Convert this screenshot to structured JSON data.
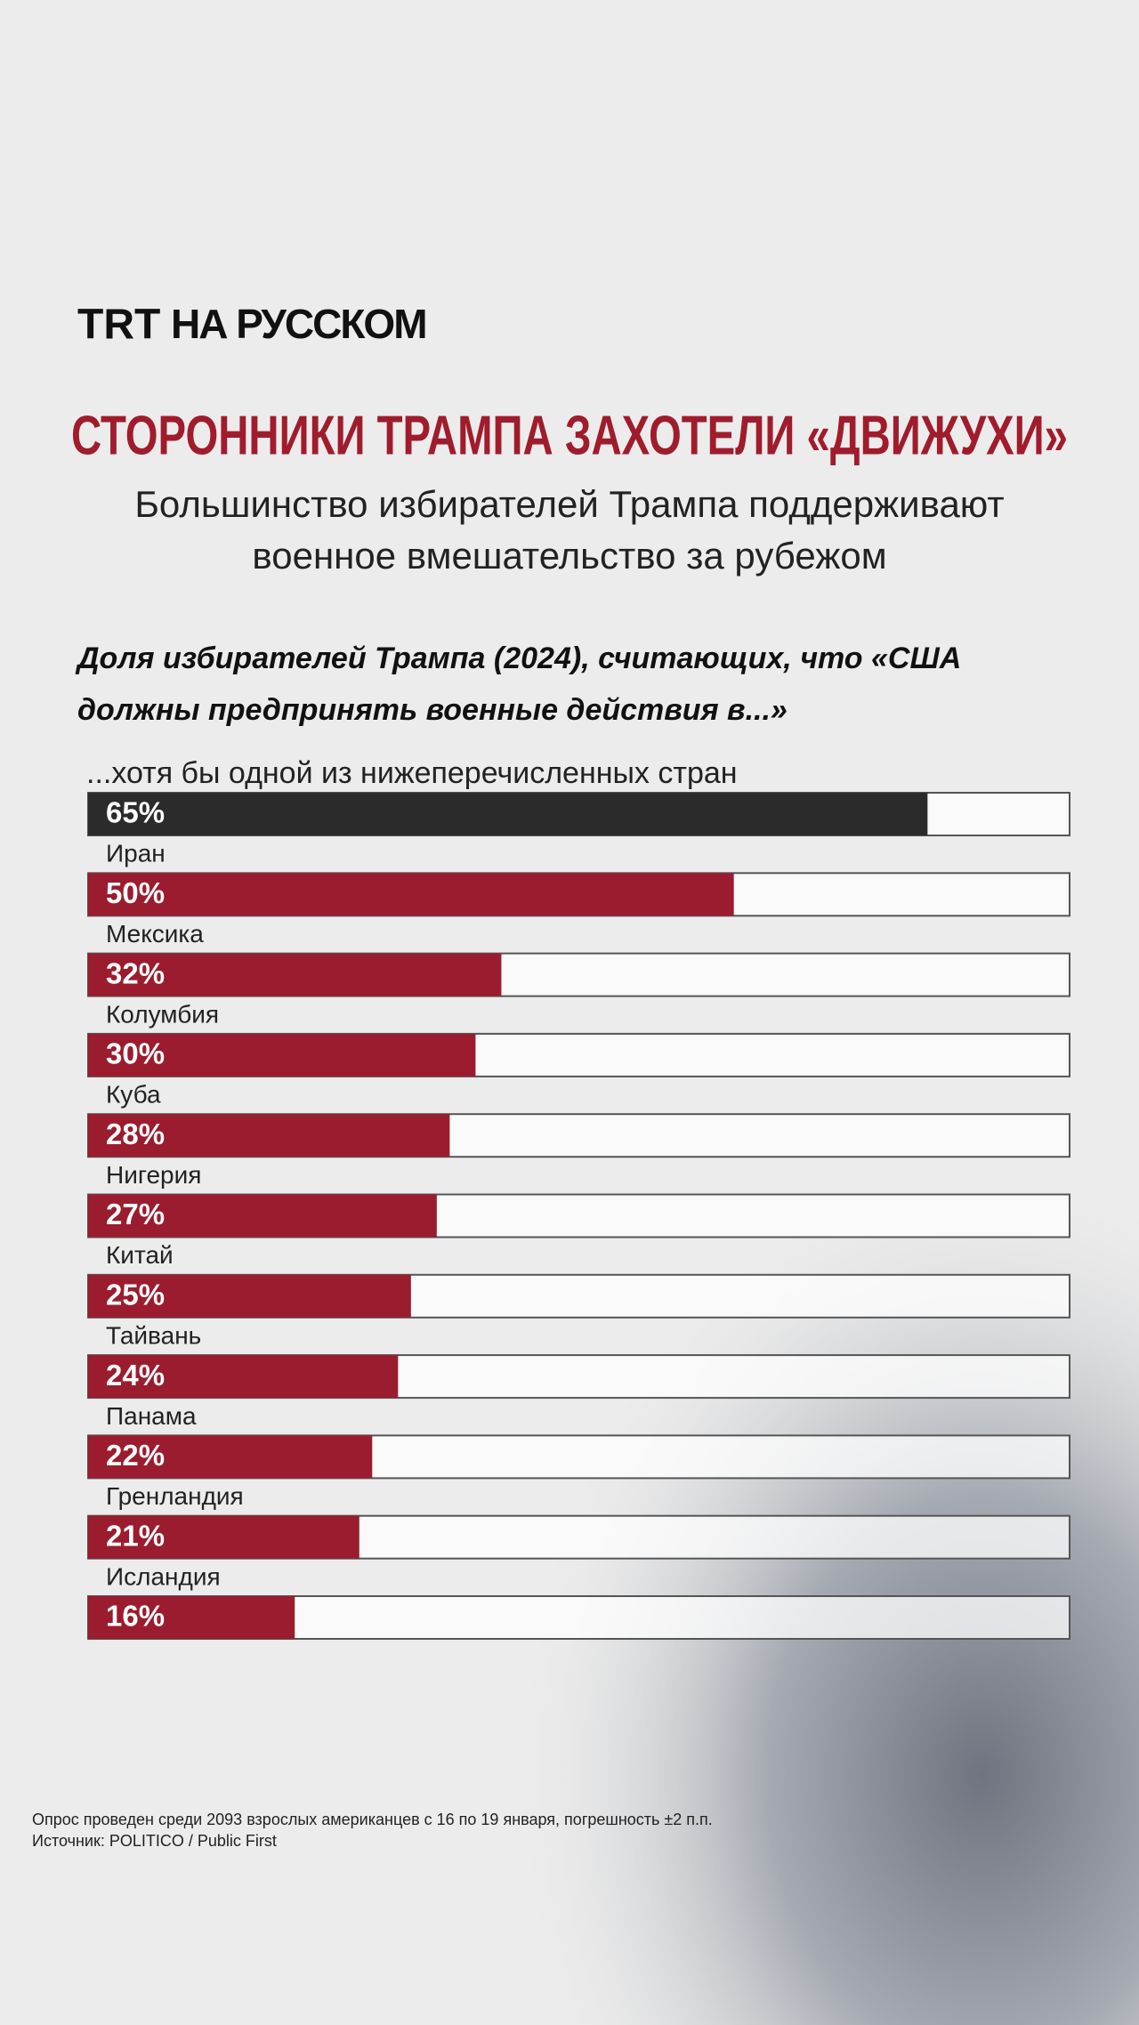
{
  "logo": {
    "brand": "TRT",
    "text": "НА РУССКОМ"
  },
  "chart_data": {
    "type": "bar",
    "orientation": "horizontal",
    "title": "СТОРОННИКИ ТРАМПА ЗАХОТЕЛИ «ДВИЖУХИ»",
    "subtitle": [
      "Большинство избирателей Трампа поддерживают",
      "военное вмешательство за рубежом"
    ],
    "chart_title": [
      "Доля избирателей Трампа (2024), считающих, что «США",
      "должны предпринять военные действия в...»"
    ],
    "categories": [
      "...хотя бы одной из нижеперечисленных стран",
      "Иран",
      "Мексика",
      "Колумбия",
      "Куба",
      "Нигерия",
      "Китай",
      "Тайвань",
      "Панама",
      "Гренландия",
      "Исландия"
    ],
    "values": [
      65,
      50,
      32,
      30,
      28,
      27,
      25,
      24,
      22,
      21,
      16
    ],
    "value_labels": [
      "65%",
      "50%",
      "32%",
      "30%",
      "28%",
      "27%",
      "25%",
      "24%",
      "22%",
      "21%",
      "16%"
    ],
    "colors": [
      "#2b2b2b",
      "#9b1c2e",
      "#9b1c2e",
      "#9b1c2e",
      "#9b1c2e",
      "#9b1c2e",
      "#9b1c2e",
      "#9b1c2e",
      "#9b1c2e",
      "#9b1c2e",
      "#9b1c2e"
    ],
    "xlim": [
      0,
      76
    ]
  },
  "footnote": "Опрос проведен среди 2093 взрослых американцев с 16 по 19 января, погрешность ±2 п.п.",
  "source": "Источник: POLITICO / Public First"
}
